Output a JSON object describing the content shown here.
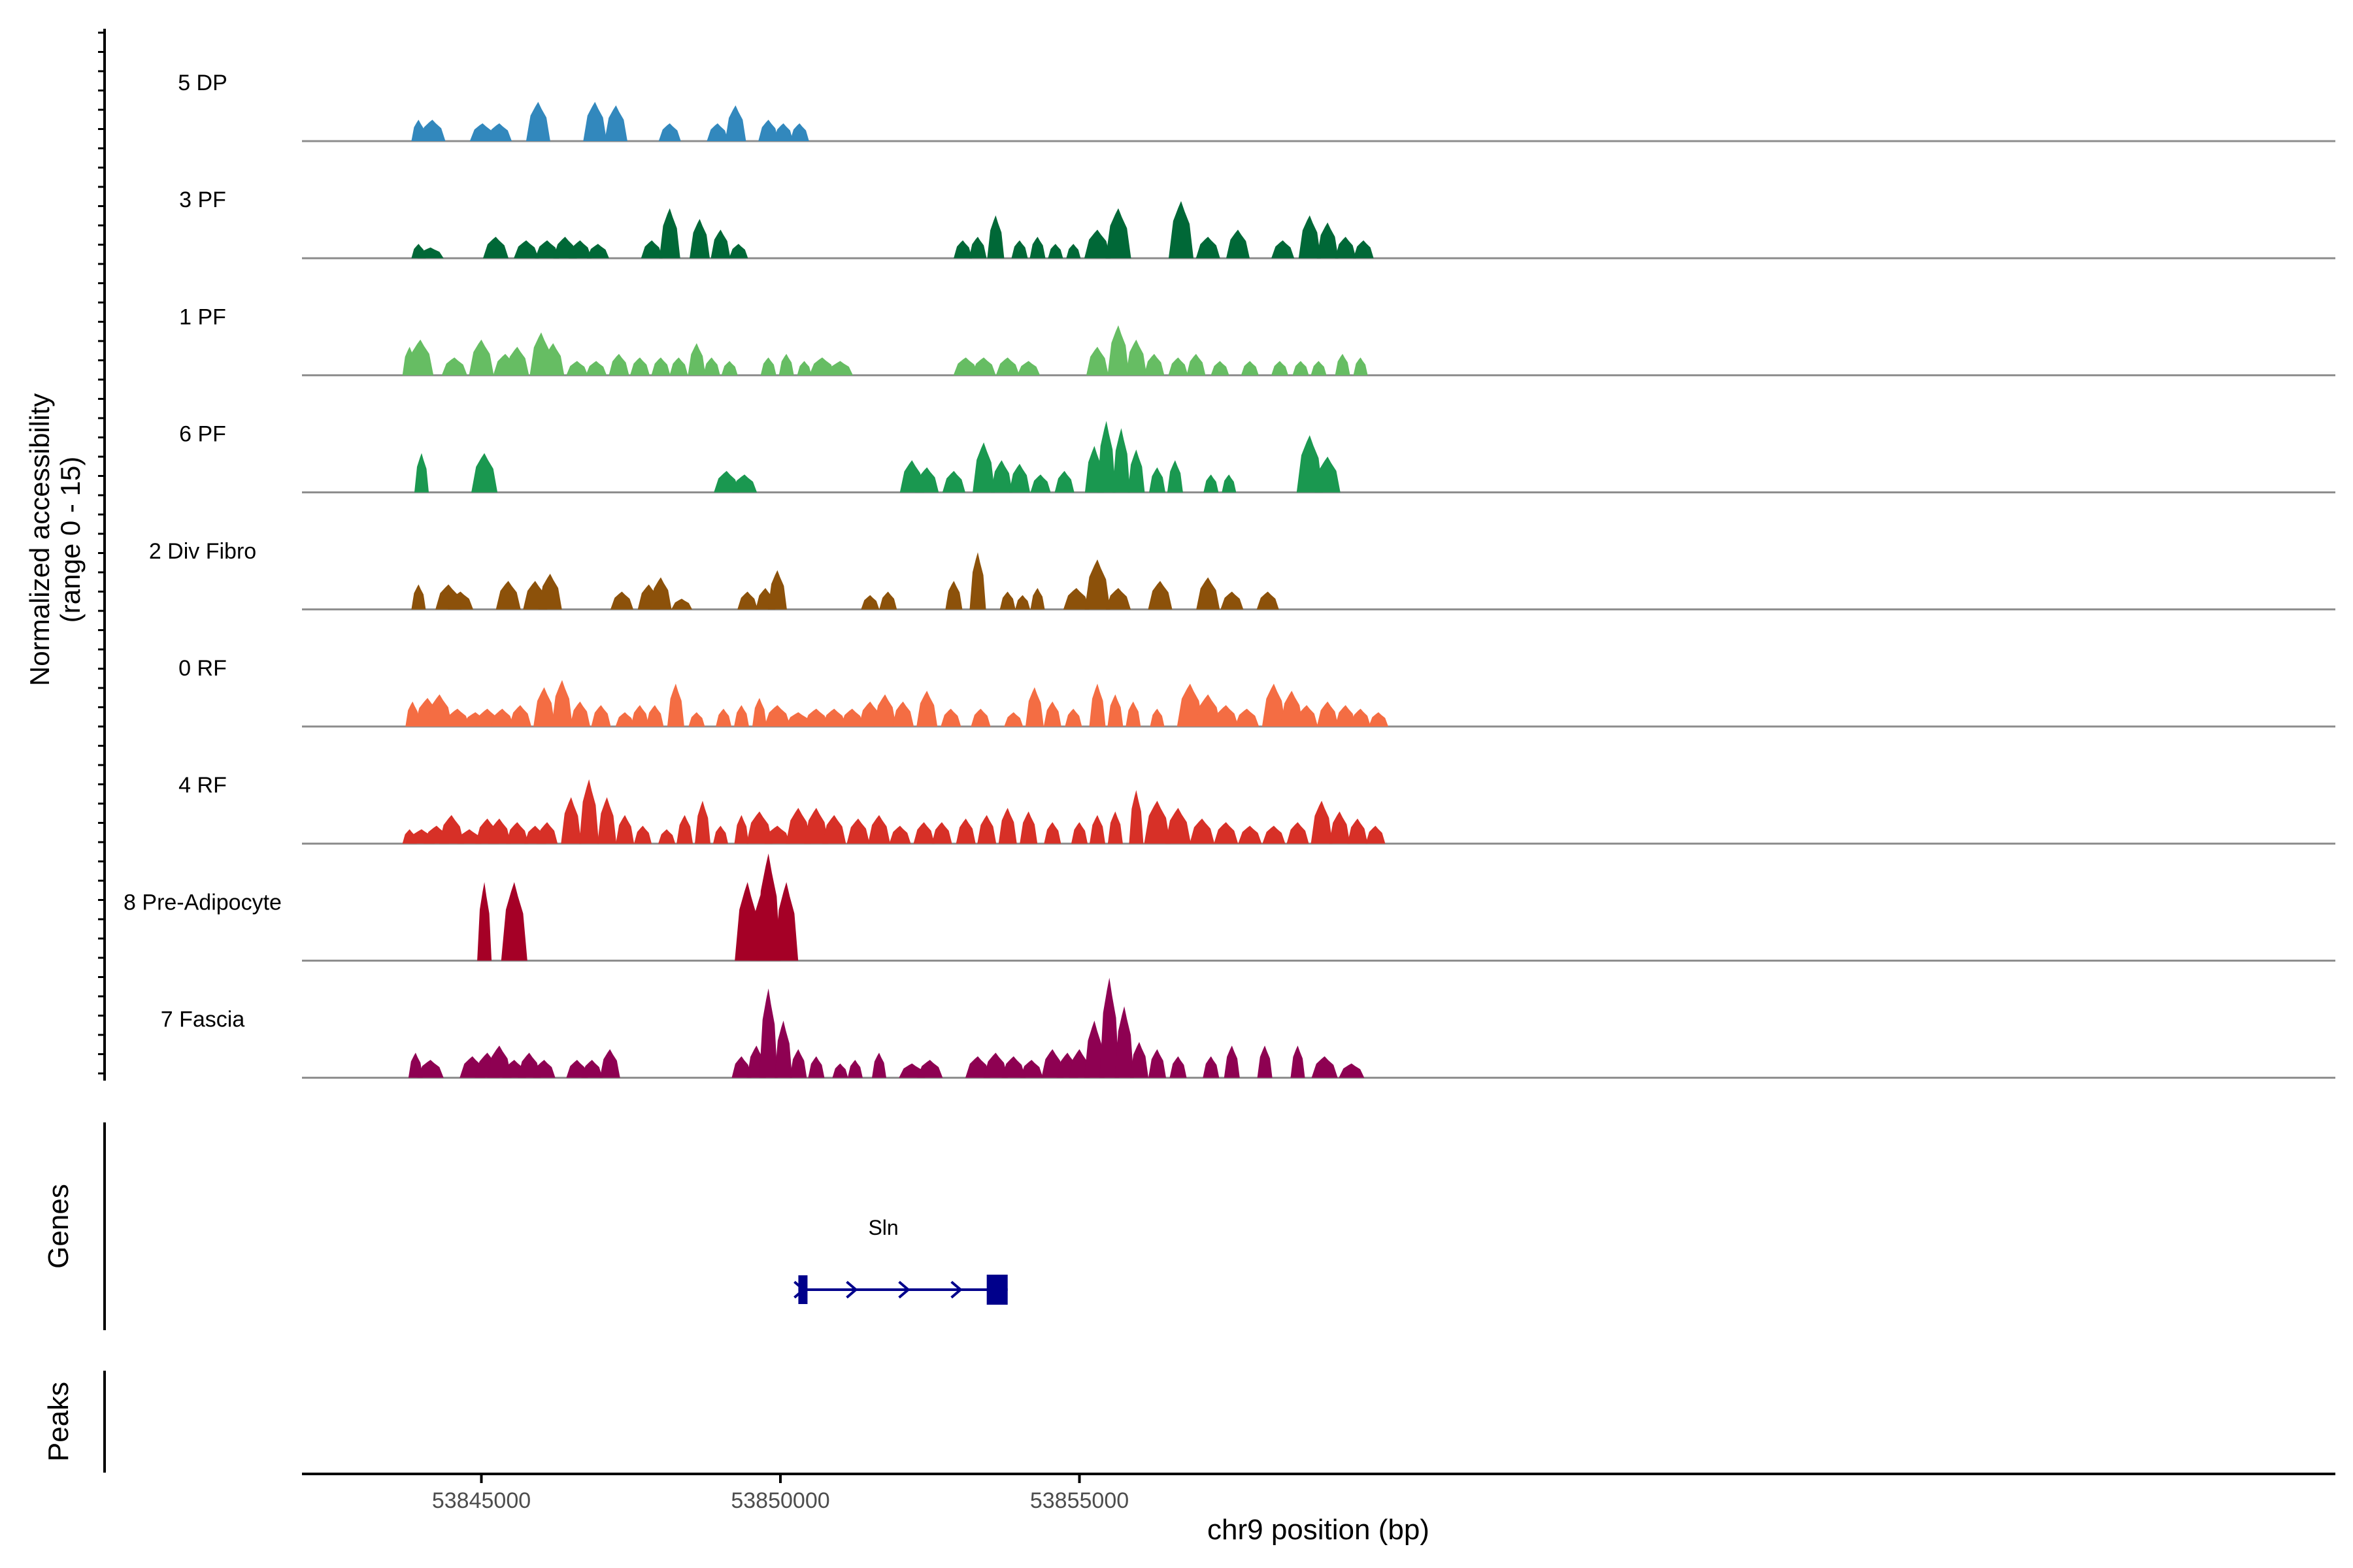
{
  "chart_data": {
    "type": "area",
    "title": "",
    "ylabel_line1": "Normalized accessibility",
    "ylabel_line2": "(range 0 - 15)",
    "xlabel": "chr9 position (bp)",
    "xlim": [
      53842000,
      53876000
    ],
    "ylim": [
      0,
      15
    ],
    "x_ticks": [
      53845000,
      53850000,
      53855000
    ],
    "x_tick_labels": [
      "53845000",
      "53850000",
      "53855000"
    ],
    "region_start": 53843980,
    "region_end": 53858500,
    "tracks_panel_label": "",
    "genes_panel_label": "Genes",
    "peaks_panel_label": "Peaks",
    "series": [
      {
        "name": "5 DP",
        "color": "#3288bd",
        "peaks": [
          [
            53843950,
            6
          ],
          [
            53844180,
            6
          ],
          [
            53845020,
            5
          ],
          [
            53845300,
            5
          ],
          [
            53845950,
            11
          ],
          [
            53846900,
            11
          ],
          [
            53847250,
            10
          ],
          [
            53848150,
            5
          ],
          [
            53848950,
            5
          ],
          [
            53849250,
            10
          ],
          [
            53849800,
            6
          ],
          [
            53850050,
            5
          ],
          [
            53850320,
            5
          ]
        ]
      },
      {
        "name": "3 PF",
        "color": "#006837",
        "peaks": [
          [
            53843950,
            4
          ],
          [
            53844150,
            3
          ],
          [
            53845240,
            6
          ],
          [
            53845750,
            5
          ],
          [
            53846100,
            5
          ],
          [
            53846400,
            6
          ],
          [
            53846650,
            5
          ],
          [
            53846950,
            4
          ],
          [
            53847850,
            5
          ],
          [
            53848150,
            14
          ],
          [
            53848650,
            11
          ],
          [
            53849000,
            8
          ],
          [
            53849300,
            4
          ],
          [
            53853050,
            5
          ],
          [
            53853300,
            6
          ],
          [
            53853600,
            12
          ],
          [
            53854000,
            5
          ],
          [
            53854300,
            6
          ],
          [
            53854600,
            4
          ],
          [
            53854900,
            4
          ],
          [
            53855300,
            8
          ],
          [
            53855650,
            14
          ],
          [
            53856700,
            16
          ],
          [
            53857150,
            6
          ],
          [
            53857650,
            8
          ],
          [
            53858400,
            5
          ],
          [
            53858850,
            12
          ],
          [
            53859150,
            10
          ],
          [
            53859450,
            6
          ],
          [
            53859750,
            5
          ]
        ]
      },
      {
        "name": "1 PF",
        "color": "#66bd63",
        "peaks": [
          [
            53843800,
            8
          ],
          [
            53843980,
            10
          ],
          [
            53844550,
            5
          ],
          [
            53845000,
            10
          ],
          [
            53845400,
            6
          ],
          [
            53845600,
            8
          ],
          [
            53846000,
            12
          ],
          [
            53846200,
            9
          ],
          [
            53846600,
            4
          ],
          [
            53846920,
            4
          ],
          [
            53847300,
            6
          ],
          [
            53847650,
            5
          ],
          [
            53848000,
            5
          ],
          [
            53848300,
            5
          ],
          [
            53848600,
            9
          ],
          [
            53848850,
            5
          ],
          [
            53849150,
            4
          ],
          [
            53849800,
            5
          ],
          [
            53850100,
            6
          ],
          [
            53850400,
            4
          ],
          [
            53850700,
            5
          ],
          [
            53851000,
            4
          ],
          [
            53853100,
            5
          ],
          [
            53853400,
            5
          ],
          [
            53853800,
            5
          ],
          [
            53854150,
            4
          ],
          [
            53855300,
            8
          ],
          [
            53855650,
            14
          ],
          [
            53855950,
            10
          ],
          [
            53856250,
            6
          ],
          [
            53856650,
            5
          ],
          [
            53856950,
            6
          ],
          [
            53857350,
            4
          ],
          [
            53857850,
            4
          ],
          [
            53858350,
            4
          ],
          [
            53858700,
            4
          ],
          [
            53859000,
            4
          ],
          [
            53859400,
            6
          ],
          [
            53859700,
            5
          ]
        ]
      },
      {
        "name": "6 PF",
        "color": "#1a9850",
        "peaks": [
          [
            53844000,
            11
          ],
          [
            53845050,
            11
          ],
          [
            53849100,
            6
          ],
          [
            53849400,
            5
          ],
          [
            53852200,
            9
          ],
          [
            53852450,
            7
          ],
          [
            53852900,
            6
          ],
          [
            53853400,
            14
          ],
          [
            53853700,
            9
          ],
          [
            53854000,
            8
          ],
          [
            53854350,
            5
          ],
          [
            53854750,
            6
          ],
          [
            53855250,
            13
          ],
          [
            53855450,
            20
          ],
          [
            53855700,
            18
          ],
          [
            53855950,
            12
          ],
          [
            53856300,
            7
          ],
          [
            53856600,
            9
          ],
          [
            53857200,
            5
          ],
          [
            53857500,
            5
          ],
          [
            53858850,
            16
          ],
          [
            53859150,
            10
          ]
        ]
      },
      {
        "name": "2 Div Fibro",
        "color": "#8c510a",
        "peaks": [
          [
            53843950,
            7
          ],
          [
            53844450,
            7
          ],
          [
            53844650,
            5
          ],
          [
            53845450,
            8
          ],
          [
            53845900,
            8
          ],
          [
            53846150,
            10
          ],
          [
            53847350,
            5
          ],
          [
            53847800,
            7
          ],
          [
            53848000,
            9
          ],
          [
            53848350,
            3
          ],
          [
            53849450,
            5
          ],
          [
            53849750,
            6
          ],
          [
            53849950,
            11
          ],
          [
            53851500,
            4
          ],
          [
            53851800,
            5
          ],
          [
            53852900,
            8
          ],
          [
            53853300,
            16
          ],
          [
            53853800,
            5
          ],
          [
            53854050,
            4
          ],
          [
            53854300,
            6
          ],
          [
            53854950,
            6
          ],
          [
            53855300,
            14
          ],
          [
            53855650,
            6
          ],
          [
            53856350,
            8
          ],
          [
            53857150,
            9
          ],
          [
            53857550,
            5
          ],
          [
            53858150,
            5
          ]
        ]
      },
      {
        "name": "0 RF",
        "color": "#f46d43",
        "peaks": [
          [
            53843850,
            7
          ],
          [
            53844100,
            8
          ],
          [
            53844300,
            9
          ],
          [
            53844600,
            5
          ],
          [
            53844900,
            4
          ],
          [
            53845100,
            5
          ],
          [
            53845350,
            5
          ],
          [
            53845650,
            6
          ],
          [
            53846050,
            11
          ],
          [
            53846350,
            13
          ],
          [
            53846650,
            7
          ],
          [
            53847000,
            6
          ],
          [
            53847400,
            4
          ],
          [
            53847650,
            6
          ],
          [
            53847900,
            6
          ],
          [
            53848250,
            12
          ],
          [
            53848600,
            4
          ],
          [
            53849050,
            5
          ],
          [
            53849350,
            6
          ],
          [
            53849650,
            8
          ],
          [
            53849950,
            6
          ],
          [
            53850300,
            4
          ],
          [
            53850600,
            5
          ],
          [
            53850900,
            5
          ],
          [
            53851200,
            5
          ],
          [
            53851500,
            7
          ],
          [
            53851750,
            9
          ],
          [
            53852050,
            7
          ],
          [
            53852450,
            10
          ],
          [
            53852850,
            5
          ],
          [
            53853350,
            5
          ],
          [
            53853900,
            4
          ],
          [
            53854250,
            11
          ],
          [
            53854550,
            7
          ],
          [
            53854900,
            5
          ],
          [
            53855300,
            12
          ],
          [
            53855600,
            9
          ],
          [
            53855900,
            7
          ],
          [
            53856300,
            5
          ],
          [
            53856850,
            12
          ],
          [
            53857150,
            9
          ],
          [
            53857450,
            6
          ],
          [
            53857800,
            5
          ],
          [
            53858250,
            12
          ],
          [
            53858550,
            10
          ],
          [
            53858800,
            6
          ],
          [
            53859150,
            7
          ],
          [
            53859450,
            6
          ],
          [
            53859700,
            5
          ],
          [
            53860000,
            4
          ]
        ]
      },
      {
        "name": "4 RF",
        "color": "#d73027",
        "peaks": [
          [
            53843800,
            4
          ],
          [
            53844000,
            4
          ],
          [
            53844250,
            5
          ],
          [
            53844500,
            8
          ],
          [
            53844800,
            4
          ],
          [
            53845100,
            7
          ],
          [
            53845300,
            7
          ],
          [
            53845600,
            6
          ],
          [
            53845900,
            5
          ],
          [
            53846100,
            6
          ],
          [
            53846500,
            13
          ],
          [
            53846800,
            18
          ],
          [
            53847100,
            13
          ],
          [
            53847400,
            8
          ],
          [
            53847700,
            5
          ],
          [
            53848100,
            4
          ],
          [
            53848400,
            8
          ],
          [
            53848700,
            12
          ],
          [
            53849000,
            5
          ],
          [
            53849350,
            8
          ],
          [
            53849650,
            9
          ],
          [
            53849950,
            5
          ],
          [
            53850300,
            10
          ],
          [
            53850600,
            10
          ],
          [
            53850900,
            8
          ],
          [
            53851300,
            7
          ],
          [
            53851650,
            8
          ],
          [
            53852000,
            5
          ],
          [
            53852400,
            6
          ],
          [
            53852700,
            6
          ],
          [
            53853100,
            7
          ],
          [
            53853450,
            8
          ],
          [
            53853800,
            10
          ],
          [
            53854150,
            9
          ],
          [
            53854550,
            6
          ],
          [
            53855000,
            6
          ],
          [
            53855300,
            8
          ],
          [
            53855600,
            9
          ],
          [
            53855950,
            15
          ],
          [
            53856300,
            12
          ],
          [
            53856650,
            10
          ],
          [
            53857050,
            7
          ],
          [
            53857450,
            6
          ],
          [
            53857850,
            5
          ],
          [
            53858250,
            5
          ],
          [
            53858650,
            6
          ],
          [
            53859050,
            12
          ],
          [
            53859350,
            9
          ],
          [
            53859650,
            7
          ],
          [
            53859950,
            5
          ]
        ]
      },
      {
        "name": "8 Pre-Adipocyte",
        "color": "#a50026",
        "peaks": [
          [
            53845050,
            22
          ],
          [
            53845550,
            22
          ],
          [
            53849450,
            22
          ],
          [
            53849700,
            20
          ],
          [
            53849800,
            30
          ],
          [
            53850100,
            22
          ]
        ]
      },
      {
        "name": "7 Fascia",
        "color": "#8e0152",
        "peaks": [
          [
            53843900,
            7
          ],
          [
            53844150,
            5
          ],
          [
            53844850,
            6
          ],
          [
            53845100,
            7
          ],
          [
            53845300,
            9
          ],
          [
            53845550,
            5
          ],
          [
            53845800,
            7
          ],
          [
            53846050,
            5
          ],
          [
            53846600,
            5
          ],
          [
            53846850,
            5
          ],
          [
            53847150,
            8
          ],
          [
            53849350,
            6
          ],
          [
            53849600,
            9
          ],
          [
            53849800,
            25
          ],
          [
            53850050,
            16
          ],
          [
            53850300,
            8
          ],
          [
            53850600,
            6
          ],
          [
            53851000,
            4
          ],
          [
            53851250,
            5
          ],
          [
            53851650,
            7
          ],
          [
            53852200,
            4
          ],
          [
            53852500,
            5
          ],
          [
            53853300,
            6
          ],
          [
            53853600,
            7
          ],
          [
            53853900,
            6
          ],
          [
            53854200,
            5
          ],
          [
            53854550,
            8
          ],
          [
            53854800,
            7
          ],
          [
            53855000,
            8
          ],
          [
            53855250,
            16
          ],
          [
            53855500,
            28
          ],
          [
            53855750,
            20
          ],
          [
            53856000,
            10
          ],
          [
            53856300,
            8
          ],
          [
            53856650,
            6
          ],
          [
            53857200,
            6
          ],
          [
            53857550,
            9
          ],
          [
            53858100,
            9
          ],
          [
            53858650,
            9
          ],
          [
            53859100,
            6
          ],
          [
            53859550,
            4
          ]
        ]
      }
    ],
    "gene": {
      "name": "Sln",
      "start": 53850300,
      "end": 53853800,
      "exons": [
        [
          53850300,
          53850380
        ],
        [
          53853450,
          53853800
        ]
      ],
      "color": "#00008b"
    }
  }
}
